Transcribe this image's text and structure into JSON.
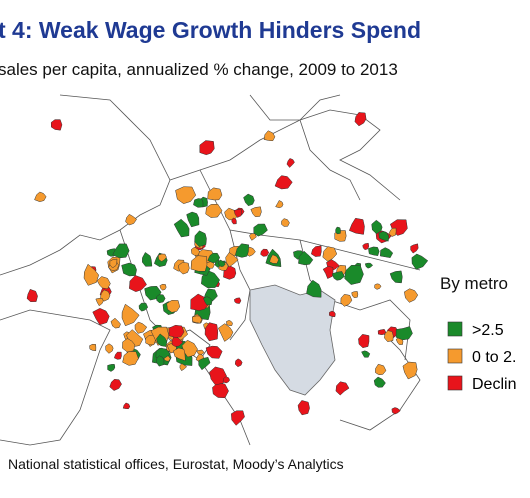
{
  "header": {
    "title": "t 4: Weak Wage Growth Hinders Spend",
    "subtitle": "sales per capita, annualized % change, 2009 to 2013"
  },
  "legend": {
    "title": "By metro",
    "items": [
      {
        "label": ">2.5",
        "color": "#1a8a2a"
      },
      {
        "label": "0 to 2.",
        "color": "#f59a2e"
      },
      {
        "label": "Declin",
        "color": "#e8141b"
      }
    ]
  },
  "source": "National statistical offices, Eurostat, Moody’s Analytics"
}
